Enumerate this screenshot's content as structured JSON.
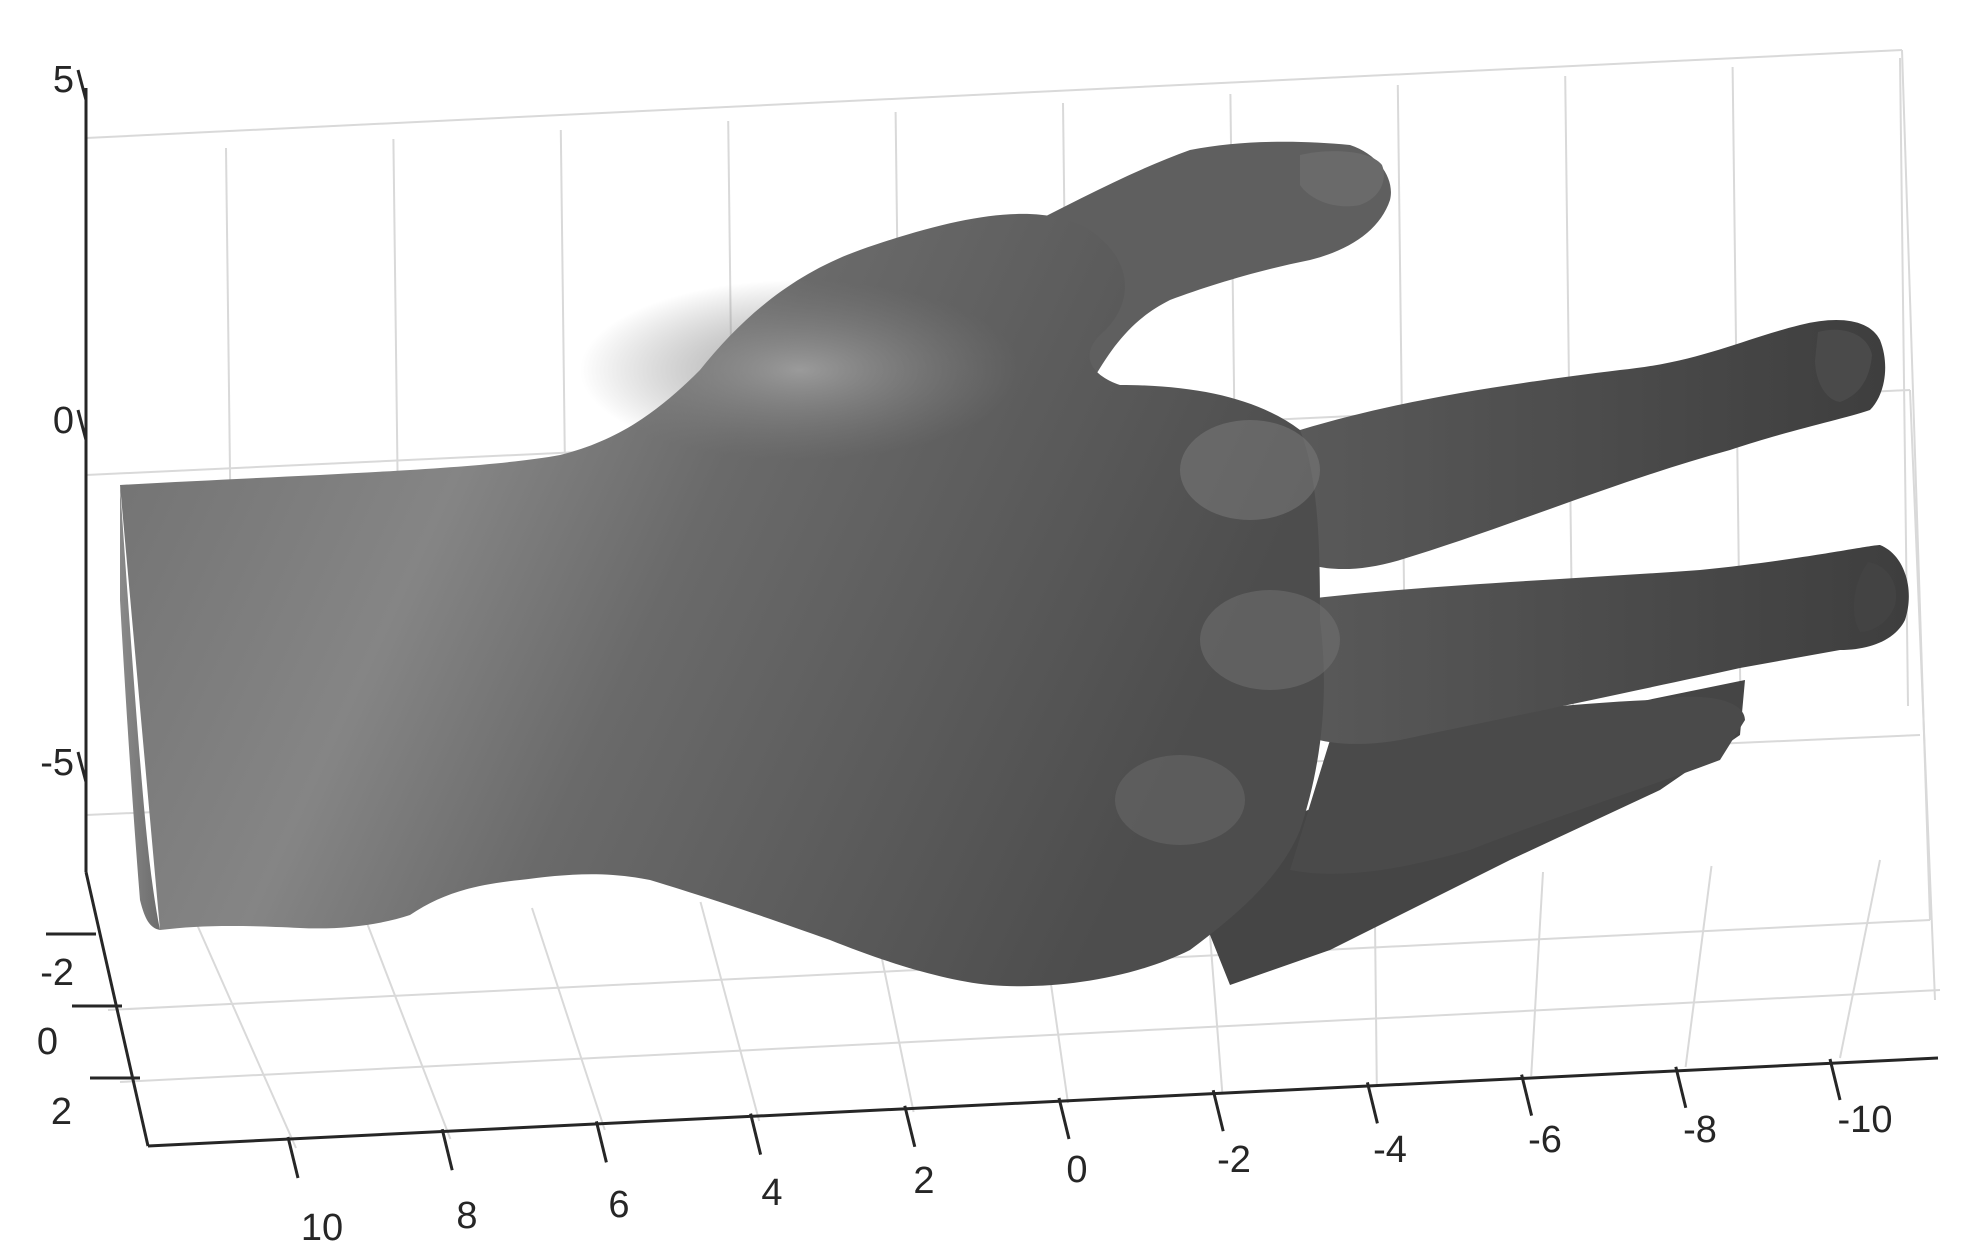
{
  "chart_data": {
    "type": "surface",
    "object": "hand mesh",
    "color": "#6e6e6e",
    "background": "#ffffff",
    "grid": true,
    "x_axis": {
      "ticks": [
        "10",
        "8",
        "6",
        "4",
        "2",
        "0",
        "-2",
        "-4",
        "-6",
        "-8",
        "-10"
      ]
    },
    "y_axis": {
      "ticks": [
        "-2",
        "0",
        "2"
      ]
    },
    "z_axis": {
      "ticks": [
        "5",
        "0",
        "-5"
      ]
    }
  }
}
